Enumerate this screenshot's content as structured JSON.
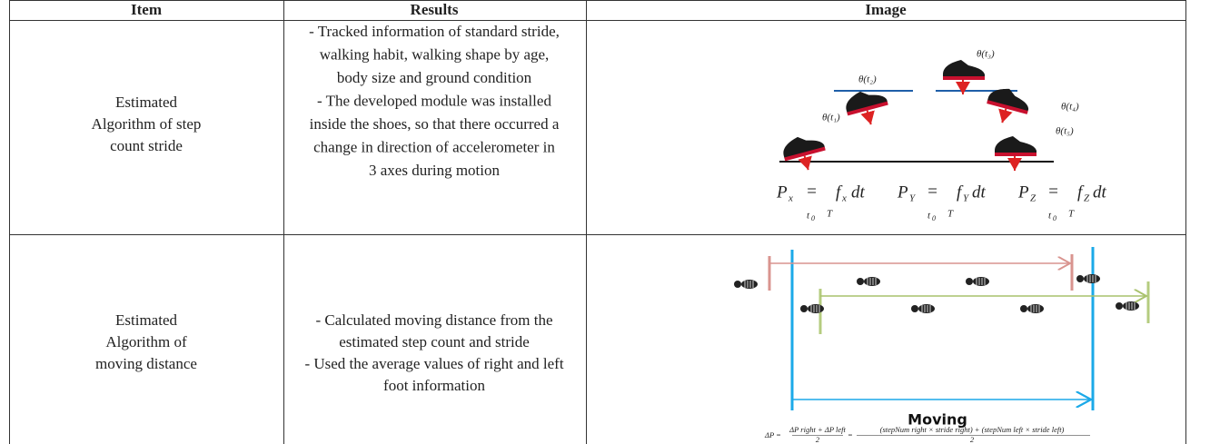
{
  "header": {
    "columns": [
      "Item",
      "Results",
      "Image"
    ]
  },
  "rows": [
    {
      "item": [
        "Estimated",
        "Algorithm of step",
        "count stride"
      ],
      "results": [
        "- Tracked information of standard stride,",
        "walking habit, walking shape by age,",
        "body size and ground condition",
        "- The developed module was installed",
        "inside the shoes, so that there occurred a",
        "change in direction of accelerometer in",
        "3 axes during motion"
      ],
      "image": {
        "angles": [
          "θ(t₁)",
          "θ(t₂)",
          "θ(t₃)",
          "θ(t₄)",
          "θ(t₅)"
        ],
        "formulas": [
          {
            "var": "P",
            "sub": "x",
            "eq": "=",
            "fn": "f",
            "fn_sub": "x",
            "tail": "dt",
            "lower": "t",
            "lower_sub": "0",
            "upper": "T"
          },
          {
            "var": "P",
            "sub": "Y",
            "eq": "=",
            "fn": "f",
            "fn_sub": "Y",
            "tail": "dt",
            "lower": "t",
            "lower_sub": "0",
            "upper": "T"
          },
          {
            "var": "P",
            "sub": "Z",
            "eq": "=",
            "fn": "f",
            "fn_sub": "Z",
            "tail": "dt",
            "lower": "t",
            "lower_sub": "0",
            "upper": "T"
          }
        ]
      }
    },
    {
      "item": [
        "Estimated",
        "Algorithm of",
        "moving distance"
      ],
      "results": [
        "- Calculated moving distance from the",
        "estimated step count and stride",
        "- Used the average values of right and left",
        "foot information"
      ],
      "image": {
        "caption": "Moving",
        "formula_lhs": "ΔP =",
        "formula_frac1_num": "ΔP right + ΔP left",
        "formula_frac1_den": "2",
        "formula_eq": "=",
        "formula_frac2_num": "(stepNum right × stride right) + (stepNum left × stride left)",
        "formula_frac2_den": "2"
      }
    }
  ]
}
